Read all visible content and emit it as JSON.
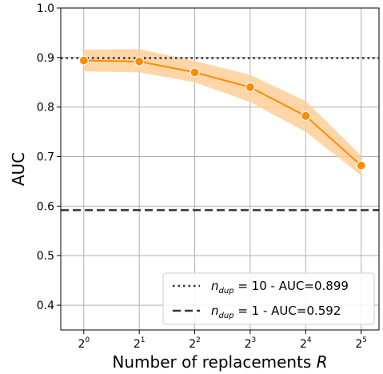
{
  "chart_data": {
    "type": "line",
    "xlabel_text": "Number of replacements ",
    "xlabel_var": "R",
    "ylabel": "AUC",
    "x_scale": "log2",
    "x": [
      1,
      2,
      4,
      8,
      16,
      32
    ],
    "x_tick_labels": [
      {
        "base": "2",
        "exp": "0"
      },
      {
        "base": "2",
        "exp": "1"
      },
      {
        "base": "2",
        "exp": "2"
      },
      {
        "base": "2",
        "exp": "3"
      },
      {
        "base": "2",
        "exp": "4"
      },
      {
        "base": "2",
        "exp": "5"
      }
    ],
    "ylim": [
      0.35,
      1.0
    ],
    "y_ticks": [
      0.4,
      0.5,
      0.6,
      0.7,
      0.8,
      0.9,
      1.0
    ],
    "y_tick_labels": [
      "0.4",
      "0.5",
      "0.6",
      "0.7",
      "0.8",
      "0.9",
      "1.0"
    ],
    "grid": true,
    "series": [
      {
        "y": [
          0.894,
          0.892,
          0.87,
          0.84,
          0.782,
          0.682
        ],
        "y_lower": [
          0.872,
          0.87,
          0.85,
          0.81,
          0.75,
          0.662
        ],
        "y_upper": [
          0.916,
          0.917,
          0.893,
          0.865,
          0.812,
          0.702
        ],
        "color": "#ff8c00",
        "band_color": "#ffcf99"
      }
    ],
    "reference_lines": [
      {
        "y": 0.899,
        "style": "dotted",
        "color": "#333333"
      },
      {
        "y": 0.592,
        "style": "dashed",
        "color": "#333333"
      }
    ],
    "legend": {
      "placement": "lower-right",
      "entries": [
        {
          "var": "n",
          "sub": "dup",
          "eq": " = 10",
          "auc": "  - AUC=0.899",
          "style": "dotted"
        },
        {
          "var": "n",
          "sub": "dup",
          "eq": " = 1",
          "auc": "    - AUC=0.592",
          "style": "dashed"
        }
      ]
    }
  }
}
